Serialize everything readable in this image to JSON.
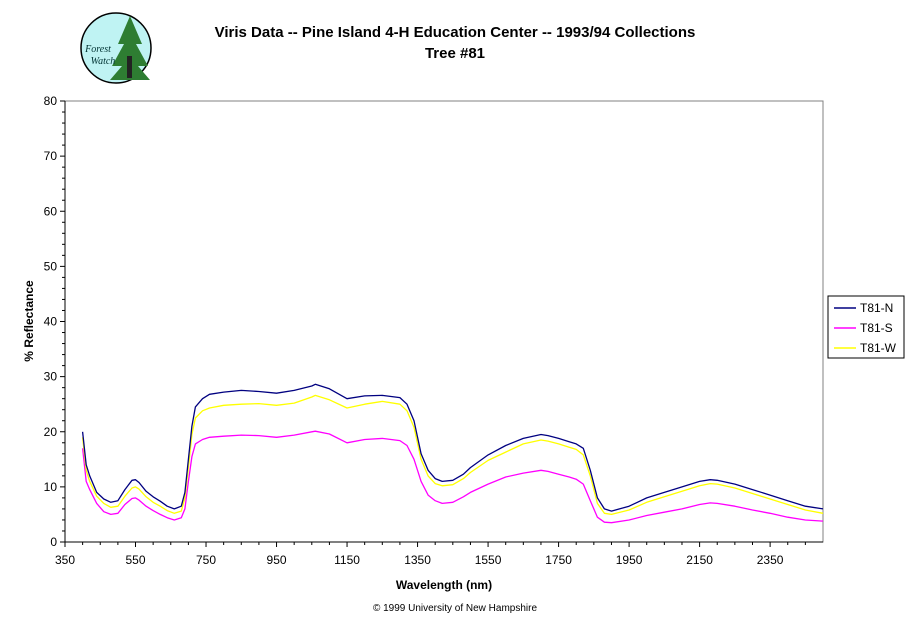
{
  "logo": {
    "line1": "Forest",
    "line2": "Watch"
  },
  "copyright": "© 1999 University of New Hampshire",
  "chart_data": {
    "type": "line",
    "title": "Viris Data -- Pine Island 4-H Education Center -- 1993/94 Collections",
    "subtitle": "Tree #81",
    "xlabel": "Wavelength (nm)",
    "ylabel": "% Reflectance",
    "xlim": [
      350,
      2500
    ],
    "ylim": [
      0,
      80
    ],
    "xticks": [
      350,
      550,
      750,
      950,
      1150,
      1350,
      1550,
      1750,
      1950,
      2150,
      2350
    ],
    "yticks": [
      0,
      10,
      20,
      30,
      40,
      50,
      60,
      70,
      80
    ],
    "grid": false,
    "legend_position": "right",
    "x": [
      400,
      410,
      420,
      440,
      460,
      480,
      500,
      520,
      540,
      550,
      560,
      580,
      600,
      620,
      640,
      660,
      680,
      690,
      700,
      710,
      720,
      740,
      760,
      800,
      850,
      900,
      950,
      1000,
      1050,
      1060,
      1100,
      1150,
      1200,
      1250,
      1300,
      1320,
      1340,
      1360,
      1380,
      1400,
      1420,
      1450,
      1480,
      1500,
      1550,
      1600,
      1650,
      1700,
      1720,
      1750,
      1780,
      1800,
      1820,
      1840,
      1860,
      1880,
      1900,
      1950,
      2000,
      2050,
      2100,
      2150,
      2180,
      2200,
      2250,
      2300,
      2350,
      2400,
      2450,
      2500
    ],
    "series": [
      {
        "name": "T81-N",
        "color": "#000080",
        "values": [
          20,
          14,
          12,
          9,
          7.8,
          7.2,
          7.5,
          9.5,
          11.2,
          11.3,
          10.8,
          9.2,
          8.2,
          7.4,
          6.5,
          6,
          6.5,
          9,
          15,
          21,
          24.5,
          26,
          26.8,
          27.2,
          27.5,
          27.3,
          27,
          27.5,
          28.3,
          28.6,
          27.8,
          26,
          26.5,
          26.6,
          26.2,
          25,
          22,
          16,
          13,
          11.5,
          11,
          11.2,
          12.3,
          13.5,
          15.8,
          17.5,
          18.8,
          19.5,
          19.3,
          18.8,
          18.2,
          17.8,
          17,
          13,
          8,
          6,
          5.6,
          6.5,
          8,
          9,
          10,
          11,
          11.3,
          11.2,
          10.5,
          9.5,
          8.5,
          7.5,
          6.5,
          6
        ]
      },
      {
        "name": "T81-S",
        "color": "#ff00ff",
        "values": [
          17,
          11,
          9.5,
          7,
          5.5,
          5,
          5.2,
          6.8,
          7.9,
          8,
          7.6,
          6.5,
          5.7,
          5,
          4.4,
          4,
          4.4,
          6,
          11,
          15.5,
          17.8,
          18.6,
          19,
          19.2,
          19.4,
          19.3,
          19,
          19.4,
          20,
          20.1,
          19.6,
          18,
          18.6,
          18.8,
          18.4,
          17.5,
          15,
          11,
          8.5,
          7.5,
          7,
          7.2,
          8.2,
          9,
          10.5,
          11.8,
          12.5,
          13,
          12.8,
          12.3,
          11.8,
          11.4,
          10.5,
          7.5,
          4.5,
          3.6,
          3.5,
          4,
          4.8,
          5.4,
          6,
          6.8,
          7.1,
          7,
          6.5,
          5.8,
          5.2,
          4.5,
          4,
          3.8
        ]
      },
      {
        "name": "T81-W",
        "color": "#ffff00",
        "values": [
          19,
          13,
          11,
          8.3,
          7,
          6.3,
          6.5,
          8.3,
          9.8,
          10,
          9.6,
          8.2,
          7.2,
          6.5,
          5.7,
          5.2,
          5.6,
          8,
          13.5,
          19.5,
          22.5,
          23.8,
          24.3,
          24.8,
          25,
          25.1,
          24.8,
          25.2,
          26.3,
          26.6,
          25.8,
          24.3,
          25,
          25.5,
          25,
          23.8,
          20.8,
          15,
          12,
          10.6,
          10.2,
          10.4,
          11.5,
          12.6,
          14.8,
          16.3,
          17.8,
          18.5,
          18.3,
          17.8,
          17.2,
          16.8,
          15.8,
          12,
          7,
          5.2,
          5,
          5.8,
          7.2,
          8.2,
          9.2,
          10.2,
          10.6,
          10.5,
          9.8,
          8.8,
          7.8,
          6.8,
          5.8,
          5.2
        ]
      }
    ]
  }
}
